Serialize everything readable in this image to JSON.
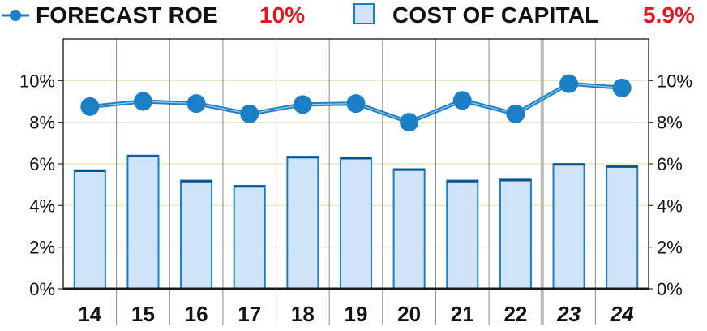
{
  "legend": {
    "roe_label": "FORECAST ROE",
    "roe_value": "10%",
    "coc_label": "COST OF CAPITAL",
    "coc_value": "5.9%",
    "value_color": "#e8141e",
    "line_icon": "line-with-dot-icon",
    "box_icon": "light-blue-square-icon"
  },
  "chart_data": {
    "type": "bar",
    "categories": [
      "14",
      "15",
      "16",
      "17",
      "18",
      "19",
      "20",
      "21",
      "22",
      "23",
      "24"
    ],
    "forecast_categories": [
      "23",
      "24"
    ],
    "series": [
      {
        "name": "COST OF CAPITAL",
        "type": "bar",
        "values": [
          5.7,
          6.4,
          5.2,
          4.95,
          6.35,
          6.3,
          5.75,
          5.2,
          5.25,
          6.0,
          5.9
        ],
        "color": "#cfe4f8",
        "edge_color": "#1b7fc6"
      },
      {
        "name": "FORECAST ROE",
        "type": "line",
        "values": [
          8.75,
          9.0,
          8.9,
          8.4,
          8.85,
          8.9,
          8.0,
          9.05,
          8.4,
          9.85,
          9.65
        ],
        "color": "#1b7fc6"
      }
    ],
    "y_ticks": [
      "0%",
      "2%",
      "4%",
      "6%",
      "8%",
      "10%"
    ],
    "y_tick_values": [
      0,
      2,
      4,
      6,
      8,
      10
    ],
    "ylim": [
      0,
      12
    ],
    "grid": true,
    "legend_position": "top",
    "title": "",
    "xlabel": "",
    "ylabel": ""
  }
}
